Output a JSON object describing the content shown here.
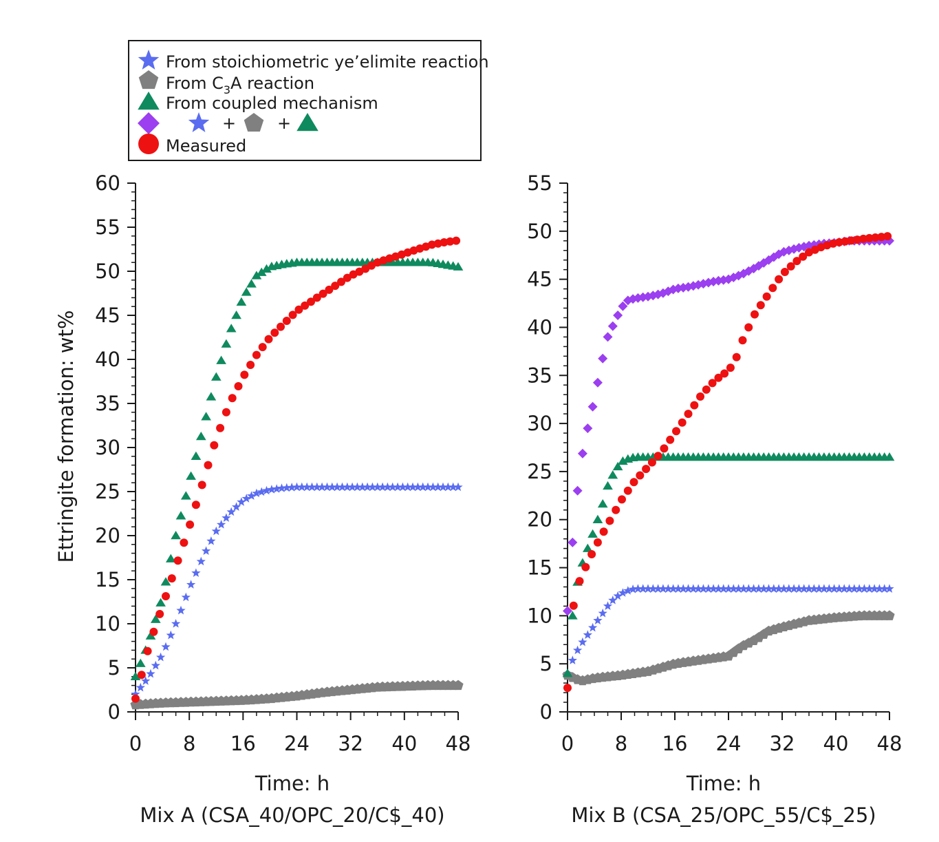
{
  "colors": {
    "stoich": "#5a6cf0",
    "c3a": "#808080",
    "coupled": "#0f8a5f",
    "sum": "#9b3ff0",
    "measured": "#ee1111"
  },
  "legend": {
    "stoich": "From stoichiometric ye’elimite reaction",
    "c3a_pre": "From C",
    "c3a_sub": "3",
    "c3a_post": "A reaction",
    "coupled": "From coupled mechanism",
    "plus": "+",
    "measured": "Measured"
  },
  "y_axis_title": "Ettringite formation: wt%",
  "chart_data": [
    {
      "type": "scatter",
      "xlabel": "Time: h",
      "caption": "Mix A (CSA_40/OPC_20/C$_40)",
      "xlim": [
        0,
        48
      ],
      "ylim": [
        0,
        60
      ],
      "x_ticks": [
        "0",
        "8",
        "16",
        "24",
        "32",
        "40",
        "48"
      ],
      "y_ticks": [
        "0",
        "5",
        "10",
        "15",
        "20",
        "25",
        "30",
        "35",
        "40",
        "45",
        "50",
        "55",
        "60"
      ],
      "series": [
        {
          "name": "From stoichiometric ye’elimite reaction",
          "marker": "star",
          "x": [
            0,
            2,
            4,
            6,
            8,
            10,
            12,
            14,
            16,
            18,
            20,
            22,
            24,
            28,
            32,
            36,
            40,
            44,
            48
          ],
          "y": [
            2,
            4,
            6.5,
            10,
            14,
            17.5,
            20.5,
            22.5,
            24,
            24.8,
            25.2,
            25.4,
            25.5,
            25.5,
            25.5,
            25.5,
            25.5,
            25.5,
            25.5
          ]
        },
        {
          "name": "From C3A reaction",
          "marker": "pentagon",
          "x": [
            0,
            4,
            8,
            12,
            16,
            20,
            24,
            28,
            32,
            36,
            40,
            44,
            48
          ],
          "y": [
            0.8,
            1,
            1.1,
            1.2,
            1.3,
            1.5,
            1.8,
            2.2,
            2.5,
            2.8,
            2.9,
            3,
            3
          ]
        },
        {
          "name": "From coupled mechanism",
          "marker": "triangle",
          "x": [
            0,
            2,
            4,
            6,
            8,
            10,
            12,
            14,
            16,
            18,
            20,
            22,
            24,
            28,
            32,
            36,
            40,
            44,
            48
          ],
          "y": [
            4,
            8,
            13,
            20,
            26,
            32,
            38,
            43,
            47,
            49.5,
            50.5,
            50.8,
            51,
            51,
            51,
            51,
            51,
            51,
            50.5
          ]
        },
        {
          "name": "Measured",
          "marker": "circle",
          "x": [
            0,
            2,
            4,
            6,
            8,
            10,
            12,
            14,
            16,
            18,
            20,
            22,
            24,
            26,
            28,
            30,
            32,
            34,
            36,
            38,
            40,
            42,
            44,
            46,
            48
          ],
          "y": [
            1.5,
            7.5,
            12,
            16.5,
            21,
            26,
            31,
            35,
            38,
            40.5,
            42.5,
            44,
            45.5,
            46.5,
            47.5,
            48.5,
            49.5,
            50.2,
            51,
            51.5,
            52,
            52.5,
            53,
            53.3,
            53.5
          ]
        }
      ]
    },
    {
      "type": "scatter",
      "xlabel": "Time: h",
      "caption": "Mix B (CSA_25/OPC_55/C$_25)",
      "xlim": [
        0,
        48
      ],
      "ylim": [
        0,
        55
      ],
      "x_ticks": [
        "0",
        "8",
        "16",
        "24",
        "32",
        "40",
        "48"
      ],
      "y_ticks": [
        "0",
        "5",
        "10",
        "15",
        "20",
        "25",
        "30",
        "35",
        "40",
        "45",
        "50",
        "55"
      ],
      "series": [
        {
          "name": "From stoichiometric ye’elimite reaction",
          "marker": "star",
          "x": [
            0,
            1,
            2,
            3,
            4,
            5,
            6,
            7,
            8,
            9,
            10,
            12,
            16,
            20,
            24,
            28,
            32,
            36,
            40,
            44,
            48
          ],
          "y": [
            4,
            5.8,
            7,
            8,
            9,
            10,
            11,
            11.8,
            12.3,
            12.6,
            12.8,
            12.8,
            12.8,
            12.8,
            12.8,
            12.8,
            12.8,
            12.8,
            12.8,
            12.8,
            12.8
          ]
        },
        {
          "name": "From C3A reaction",
          "marker": "pentagon",
          "x": [
            0,
            2,
            4,
            8,
            12,
            16,
            20,
            24,
            26,
            28,
            30,
            32,
            36,
            40,
            44,
            48
          ],
          "y": [
            3.8,
            3.2,
            3.5,
            3.8,
            4.2,
            5,
            5.4,
            5.8,
            6.8,
            7.5,
            8.4,
            8.8,
            9.5,
            9.8,
            10,
            10
          ]
        },
        {
          "name": "From coupled mechanism",
          "marker": "triangle",
          "x": [
            0,
            1,
            2,
            3,
            4,
            5,
            6,
            7,
            8,
            9,
            10,
            12,
            16,
            20,
            24,
            28,
            32,
            36,
            40,
            44,
            48
          ],
          "y": [
            4,
            12,
            15,
            17,
            19,
            21,
            23.5,
            25,
            26,
            26.3,
            26.5,
            26.5,
            26.5,
            26.5,
            26.5,
            26.5,
            26.5,
            26.5,
            26.5,
            26.5,
            26.5
          ]
        },
        {
          "name": "Sum",
          "marker": "diamond",
          "x": [
            0,
            1,
            2,
            3,
            4,
            5,
            6,
            7,
            8,
            9,
            10,
            12,
            14,
            16,
            18,
            20,
            22,
            24,
            26,
            28,
            30,
            32,
            34,
            36,
            38,
            40,
            42,
            44,
            46,
            48
          ],
          "y": [
            10.5,
            20,
            26,
            29.5,
            32.5,
            36,
            39,
            40.5,
            42,
            42.8,
            43,
            43.2,
            43.5,
            44,
            44.2,
            44.5,
            44.8,
            45,
            45.5,
            46.2,
            47,
            47.8,
            48.2,
            48.5,
            48.7,
            48.8,
            49,
            49,
            49,
            49
          ]
        },
        {
          "name": "Measured",
          "marker": "circle",
          "x": [
            0,
            1,
            2,
            3,
            4,
            6,
            8,
            10,
            12,
            14,
            16,
            18,
            20,
            22,
            24,
            25,
            26,
            27,
            28,
            29,
            30,
            32,
            34,
            36,
            38,
            40,
            44,
            48
          ],
          "y": [
            2.5,
            12,
            14,
            15.5,
            17,
            19.5,
            22,
            24,
            25.5,
            27,
            29,
            31,
            33,
            34.5,
            35.5,
            36.5,
            38.5,
            40,
            41.5,
            42.5,
            43.5,
            45.5,
            46.8,
            47.8,
            48.4,
            48.8,
            49.2,
            49.5
          ]
        }
      ]
    }
  ]
}
